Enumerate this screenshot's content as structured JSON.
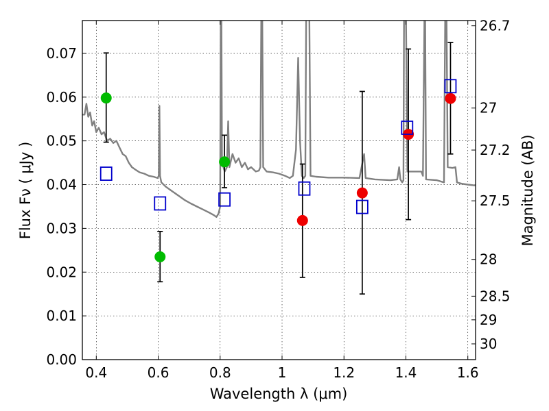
{
  "chart_data": {
    "type": "scatter",
    "xlabel": "Wavelength  λ (μm)",
    "ylabel": "Flux  Fν  ( μJy )",
    "y2label": "Magnitude (AB)",
    "xlim": [
      0.355,
      1.625
    ],
    "ylim": [
      0.0,
      0.0775
    ],
    "grid": true,
    "x_ticks": [
      0.4,
      0.6,
      0.8,
      1.0,
      1.2,
      1.4,
      1.6
    ],
    "x_tick_labels": [
      "0.4",
      "0.6",
      "0.8",
      "1",
      "1.2",
      "1.4",
      "1.6"
    ],
    "y_ticks": [
      0.0,
      0.01,
      0.02,
      0.03,
      0.04,
      0.05,
      0.06,
      0.07
    ],
    "y_tick_labels": [
      "0.00",
      "0.01",
      "0.02",
      "0.03",
      "0.04",
      "0.05",
      "0.06",
      "0.07"
    ],
    "y2_ticks": [
      {
        "label": "26.7",
        "flux": 0.0763
      },
      {
        "label": "27",
        "flux": 0.0575
      },
      {
        "label": "27.2",
        "flux": 0.0479
      },
      {
        "label": "27.5",
        "flux": 0.0363
      },
      {
        "label": "28",
        "flux": 0.0229
      },
      {
        "label": "28.5",
        "flux": 0.0145
      },
      {
        "label": "29",
        "flux": 0.0091
      },
      {
        "label": "30",
        "flux": 0.0036
      }
    ],
    "colors": {
      "green": "#00bb00",
      "red": "#ee0000",
      "square": "#0000cc",
      "spectrum": "#808080",
      "errorbar": "#000000"
    },
    "series": [
      {
        "marker": "circle",
        "color": "green",
        "points": [
          {
            "x": 0.432,
            "y": 0.0598,
            "err_low": 0.0497,
            "err_high": 0.0701
          },
          {
            "x": 0.606,
            "y": 0.0235,
            "err_low": 0.0178,
            "err_high": 0.0293
          },
          {
            "x": 0.814,
            "y": 0.0452,
            "err_low": 0.0393,
            "err_high": 0.0513
          }
        ]
      },
      {
        "marker": "circle",
        "color": "red",
        "points": [
          {
            "x": 1.066,
            "y": 0.0318,
            "err_low": 0.0188,
            "err_high": 0.0447
          },
          {
            "x": 1.259,
            "y": 0.0381,
            "err_low": 0.015,
            "err_high": 0.0613
          },
          {
            "x": 1.408,
            "y": 0.0515,
            "err_low": 0.032,
            "err_high": 0.071
          },
          {
            "x": 1.544,
            "y": 0.0597,
            "err_low": 0.047,
            "err_high": 0.0725
          }
        ]
      },
      {
        "marker": "square",
        "color": "square",
        "points": [
          {
            "x": 0.432,
            "y": 0.0425
          },
          {
            "x": 0.606,
            "y": 0.0357
          },
          {
            "x": 0.814,
            "y": 0.0366
          },
          {
            "x": 1.072,
            "y": 0.0391
          },
          {
            "x": 1.259,
            "y": 0.0349
          },
          {
            "x": 1.404,
            "y": 0.053
          },
          {
            "x": 1.544,
            "y": 0.0625
          }
        ]
      },
      {
        "marker": "line",
        "color": "spectrum",
        "points": [
          [
            0.355,
            0.056
          ],
          [
            0.362,
            0.056
          ],
          [
            0.368,
            0.0585
          ],
          [
            0.374,
            0.0555
          ],
          [
            0.38,
            0.0565
          ],
          [
            0.387,
            0.0535
          ],
          [
            0.393,
            0.0545
          ],
          [
            0.4,
            0.052
          ],
          [
            0.408,
            0.053
          ],
          [
            0.417,
            0.0515
          ],
          [
            0.425,
            0.052
          ],
          [
            0.435,
            0.05
          ],
          [
            0.445,
            0.0505
          ],
          [
            0.455,
            0.0495
          ],
          [
            0.465,
            0.05
          ],
          [
            0.475,
            0.0485
          ],
          [
            0.485,
            0.047
          ],
          [
            0.495,
            0.0465
          ],
          [
            0.505,
            0.045
          ],
          [
            0.515,
            0.044
          ],
          [
            0.525,
            0.0435
          ],
          [
            0.54,
            0.0428
          ],
          [
            0.555,
            0.0425
          ],
          [
            0.57,
            0.042
          ],
          [
            0.585,
            0.0418
          ],
          [
            0.598,
            0.0415
          ],
          [
            0.602,
            0.042
          ],
          [
            0.604,
            0.058
          ],
          [
            0.606,
            0.042
          ],
          [
            0.61,
            0.0405
          ],
          [
            0.625,
            0.0395
          ],
          [
            0.645,
            0.0385
          ],
          [
            0.665,
            0.0375
          ],
          [
            0.685,
            0.0365
          ],
          [
            0.705,
            0.0357
          ],
          [
            0.725,
            0.035
          ],
          [
            0.745,
            0.0343
          ],
          [
            0.765,
            0.0336
          ],
          [
            0.78,
            0.033
          ],
          [
            0.788,
            0.0326
          ],
          [
            0.795,
            0.0334
          ],
          [
            0.8,
            0.035
          ],
          [
            0.802,
            0.08
          ],
          [
            0.804,
            0.08
          ],
          [
            0.806,
            0.045
          ],
          [
            0.815,
            0.043
          ],
          [
            0.822,
            0.044
          ],
          [
            0.826,
            0.0545
          ],
          [
            0.83,
            0.044
          ],
          [
            0.84,
            0.047
          ],
          [
            0.85,
            0.045
          ],
          [
            0.86,
            0.046
          ],
          [
            0.87,
            0.044
          ],
          [
            0.88,
            0.045
          ],
          [
            0.89,
            0.0435
          ],
          [
            0.9,
            0.044
          ],
          [
            0.915,
            0.043
          ],
          [
            0.925,
            0.0432
          ],
          [
            0.93,
            0.044
          ],
          [
            0.933,
            0.08
          ],
          [
            0.936,
            0.08
          ],
          [
            0.939,
            0.044
          ],
          [
            0.95,
            0.043
          ],
          [
            0.97,
            0.0428
          ],
          [
            0.99,
            0.0425
          ],
          [
            1.01,
            0.042
          ],
          [
            1.025,
            0.0415
          ],
          [
            1.035,
            0.042
          ],
          [
            1.045,
            0.048
          ],
          [
            1.052,
            0.069
          ],
          [
            1.058,
            0.05
          ],
          [
            1.064,
            0.042
          ],
          [
            1.07,
            0.0415
          ],
          [
            1.075,
            0.042
          ],
          [
            1.078,
            0.08
          ],
          [
            1.088,
            0.08
          ],
          [
            1.092,
            0.042
          ],
          [
            1.11,
            0.0418
          ],
          [
            1.15,
            0.0416
          ],
          [
            1.2,
            0.0416
          ],
          [
            1.25,
            0.0415
          ],
          [
            1.265,
            0.047
          ],
          [
            1.27,
            0.0415
          ],
          [
            1.3,
            0.0412
          ],
          [
            1.35,
            0.041
          ],
          [
            1.372,
            0.0412
          ],
          [
            1.378,
            0.044
          ],
          [
            1.382,
            0.0412
          ],
          [
            1.388,
            0.0405
          ],
          [
            1.392,
            0.041
          ],
          [
            1.394,
            0.08
          ],
          [
            1.4,
            0.08
          ],
          [
            1.405,
            0.043
          ],
          [
            1.41,
            0.043
          ],
          [
            1.45,
            0.043
          ],
          [
            1.455,
            0.042
          ],
          [
            1.46,
            0.08
          ],
          [
            1.462,
            0.08
          ],
          [
            1.465,
            0.0412
          ],
          [
            1.5,
            0.041
          ],
          [
            1.523,
            0.0405
          ],
          [
            1.527,
            0.08
          ],
          [
            1.531,
            0.08
          ],
          [
            1.535,
            0.044
          ],
          [
            1.55,
            0.0438
          ],
          [
            1.56,
            0.044
          ],
          [
            1.565,
            0.0405
          ],
          [
            1.58,
            0.0402
          ],
          [
            1.6,
            0.04
          ],
          [
            1.625,
            0.0398
          ]
        ]
      }
    ]
  }
}
